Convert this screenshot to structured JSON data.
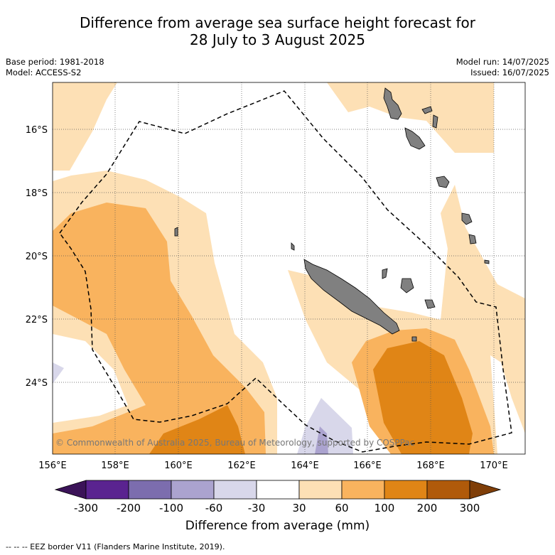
{
  "title_line1": "Difference from average sea surface height forecast for",
  "title_line2": "28 July to 3 August 2025",
  "base_period": "Base period: 1981-2018",
  "model": "Model: ACCESS-S2",
  "model_run": "Model run: 14/07/2025",
  "issued": "Issued: 16/07/2025",
  "copyright": "© Commonwealth of Australia 2025, Bureau of Meteorology, supported by COSPPac",
  "lon_labels": [
    "156°E",
    "158°E",
    "160°E",
    "162°E",
    "164°E",
    "166°E",
    "168°E",
    "170°E"
  ],
  "lat_labels": [
    "16°S",
    "18°S",
    "20°S",
    "22°S",
    "24°S"
  ],
  "colorbar": {
    "ticks": [
      "-300",
      "-200",
      "-100",
      "-60",
      "-30",
      "30",
      "60",
      "100",
      "200",
      "300"
    ],
    "colors": [
      "#3b1358",
      "#5a2390",
      "#7c6dae",
      "#aba3cf",
      "#d8d7ea",
      "#ffffff",
      "#fde0b5",
      "#f9b35e",
      "#e08516",
      "#b05a0a",
      "#7f3e08"
    ],
    "title": "Difference from average (mm)"
  },
  "footer": "--  --  -- EEZ border V11 (Flanders Marine Institute, 2019).",
  "land_color": "#808080"
}
